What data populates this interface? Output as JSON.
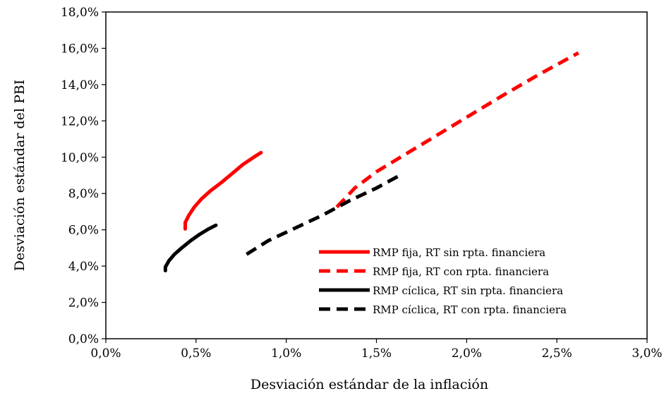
{
  "chart_data": {
    "type": "line",
    "title": "",
    "xlabel": "Desviación estándar de la inflación",
    "ylabel": "Desviación estándar del PBI",
    "xlim": [
      0,
      0.03
    ],
    "ylim": [
      0,
      0.18
    ],
    "x_ticks": [
      0,
      0.005,
      0.01,
      0.015,
      0.02,
      0.025,
      0.03
    ],
    "y_ticks": [
      0,
      0.02,
      0.04,
      0.06,
      0.08,
      0.1,
      0.12,
      0.14,
      0.16,
      0.18
    ],
    "x_tick_labels": [
      "0,0%",
      "0,5%",
      "1,0%",
      "1,5%",
      "2,0%",
      "2,5%",
      "3,0%"
    ],
    "y_tick_labels": [
      "0,0%",
      "2,0%",
      "4,0%",
      "6,0%",
      "8,0%",
      "10,0%",
      "12,0%",
      "14,0%",
      "16,0%",
      "18,0%"
    ],
    "grid": false,
    "legend_position": "bottom-right",
    "series": [
      {
        "name": "RMP fija, RT sin rpta. financiera",
        "color": "#ff0000",
        "style": "solid",
        "points": [
          [
            0.0044,
            0.0605
          ],
          [
            0.0044,
            0.064
          ],
          [
            0.0046,
            0.068
          ],
          [
            0.0049,
            0.0725
          ],
          [
            0.0053,
            0.077
          ],
          [
            0.0058,
            0.0815
          ],
          [
            0.0064,
            0.086
          ],
          [
            0.007,
            0.091
          ],
          [
            0.0076,
            0.096
          ],
          [
            0.0082,
            0.1
          ],
          [
            0.0086,
            0.1025
          ]
        ]
      },
      {
        "name": "RMP fija, RT con rpta. financiera",
        "color": "#ff0000",
        "style": "dashed",
        "points": [
          [
            0.0128,
            0.0725
          ],
          [
            0.0138,
            0.083
          ],
          [
            0.015,
            0.092
          ],
          [
            0.0165,
            0.101
          ],
          [
            0.018,
            0.11
          ],
          [
            0.02,
            0.122
          ],
          [
            0.022,
            0.134
          ],
          [
            0.024,
            0.1455
          ],
          [
            0.0262,
            0.1575
          ]
        ]
      },
      {
        "name": "RMP cíclica, RT sin rpta. financiera",
        "color": "#000000",
        "style": "solid",
        "points": [
          [
            0.0033,
            0.0375
          ],
          [
            0.0033,
            0.0395
          ],
          [
            0.0035,
            0.043
          ],
          [
            0.0038,
            0.0465
          ],
          [
            0.0042,
            0.05
          ],
          [
            0.0047,
            0.054
          ],
          [
            0.0052,
            0.0575
          ],
          [
            0.0057,
            0.0605
          ],
          [
            0.0061,
            0.0625
          ]
        ]
      },
      {
        "name": "RMP cíclica, RT con rpta. financiera",
        "color": "#000000",
        "style": "dashed",
        "points": [
          [
            0.0078,
            0.0465
          ],
          [
            0.009,
            0.054
          ],
          [
            0.0105,
            0.061
          ],
          [
            0.012,
            0.068
          ],
          [
            0.0135,
            0.076
          ],
          [
            0.015,
            0.083
          ],
          [
            0.0162,
            0.0895
          ]
        ]
      }
    ]
  }
}
